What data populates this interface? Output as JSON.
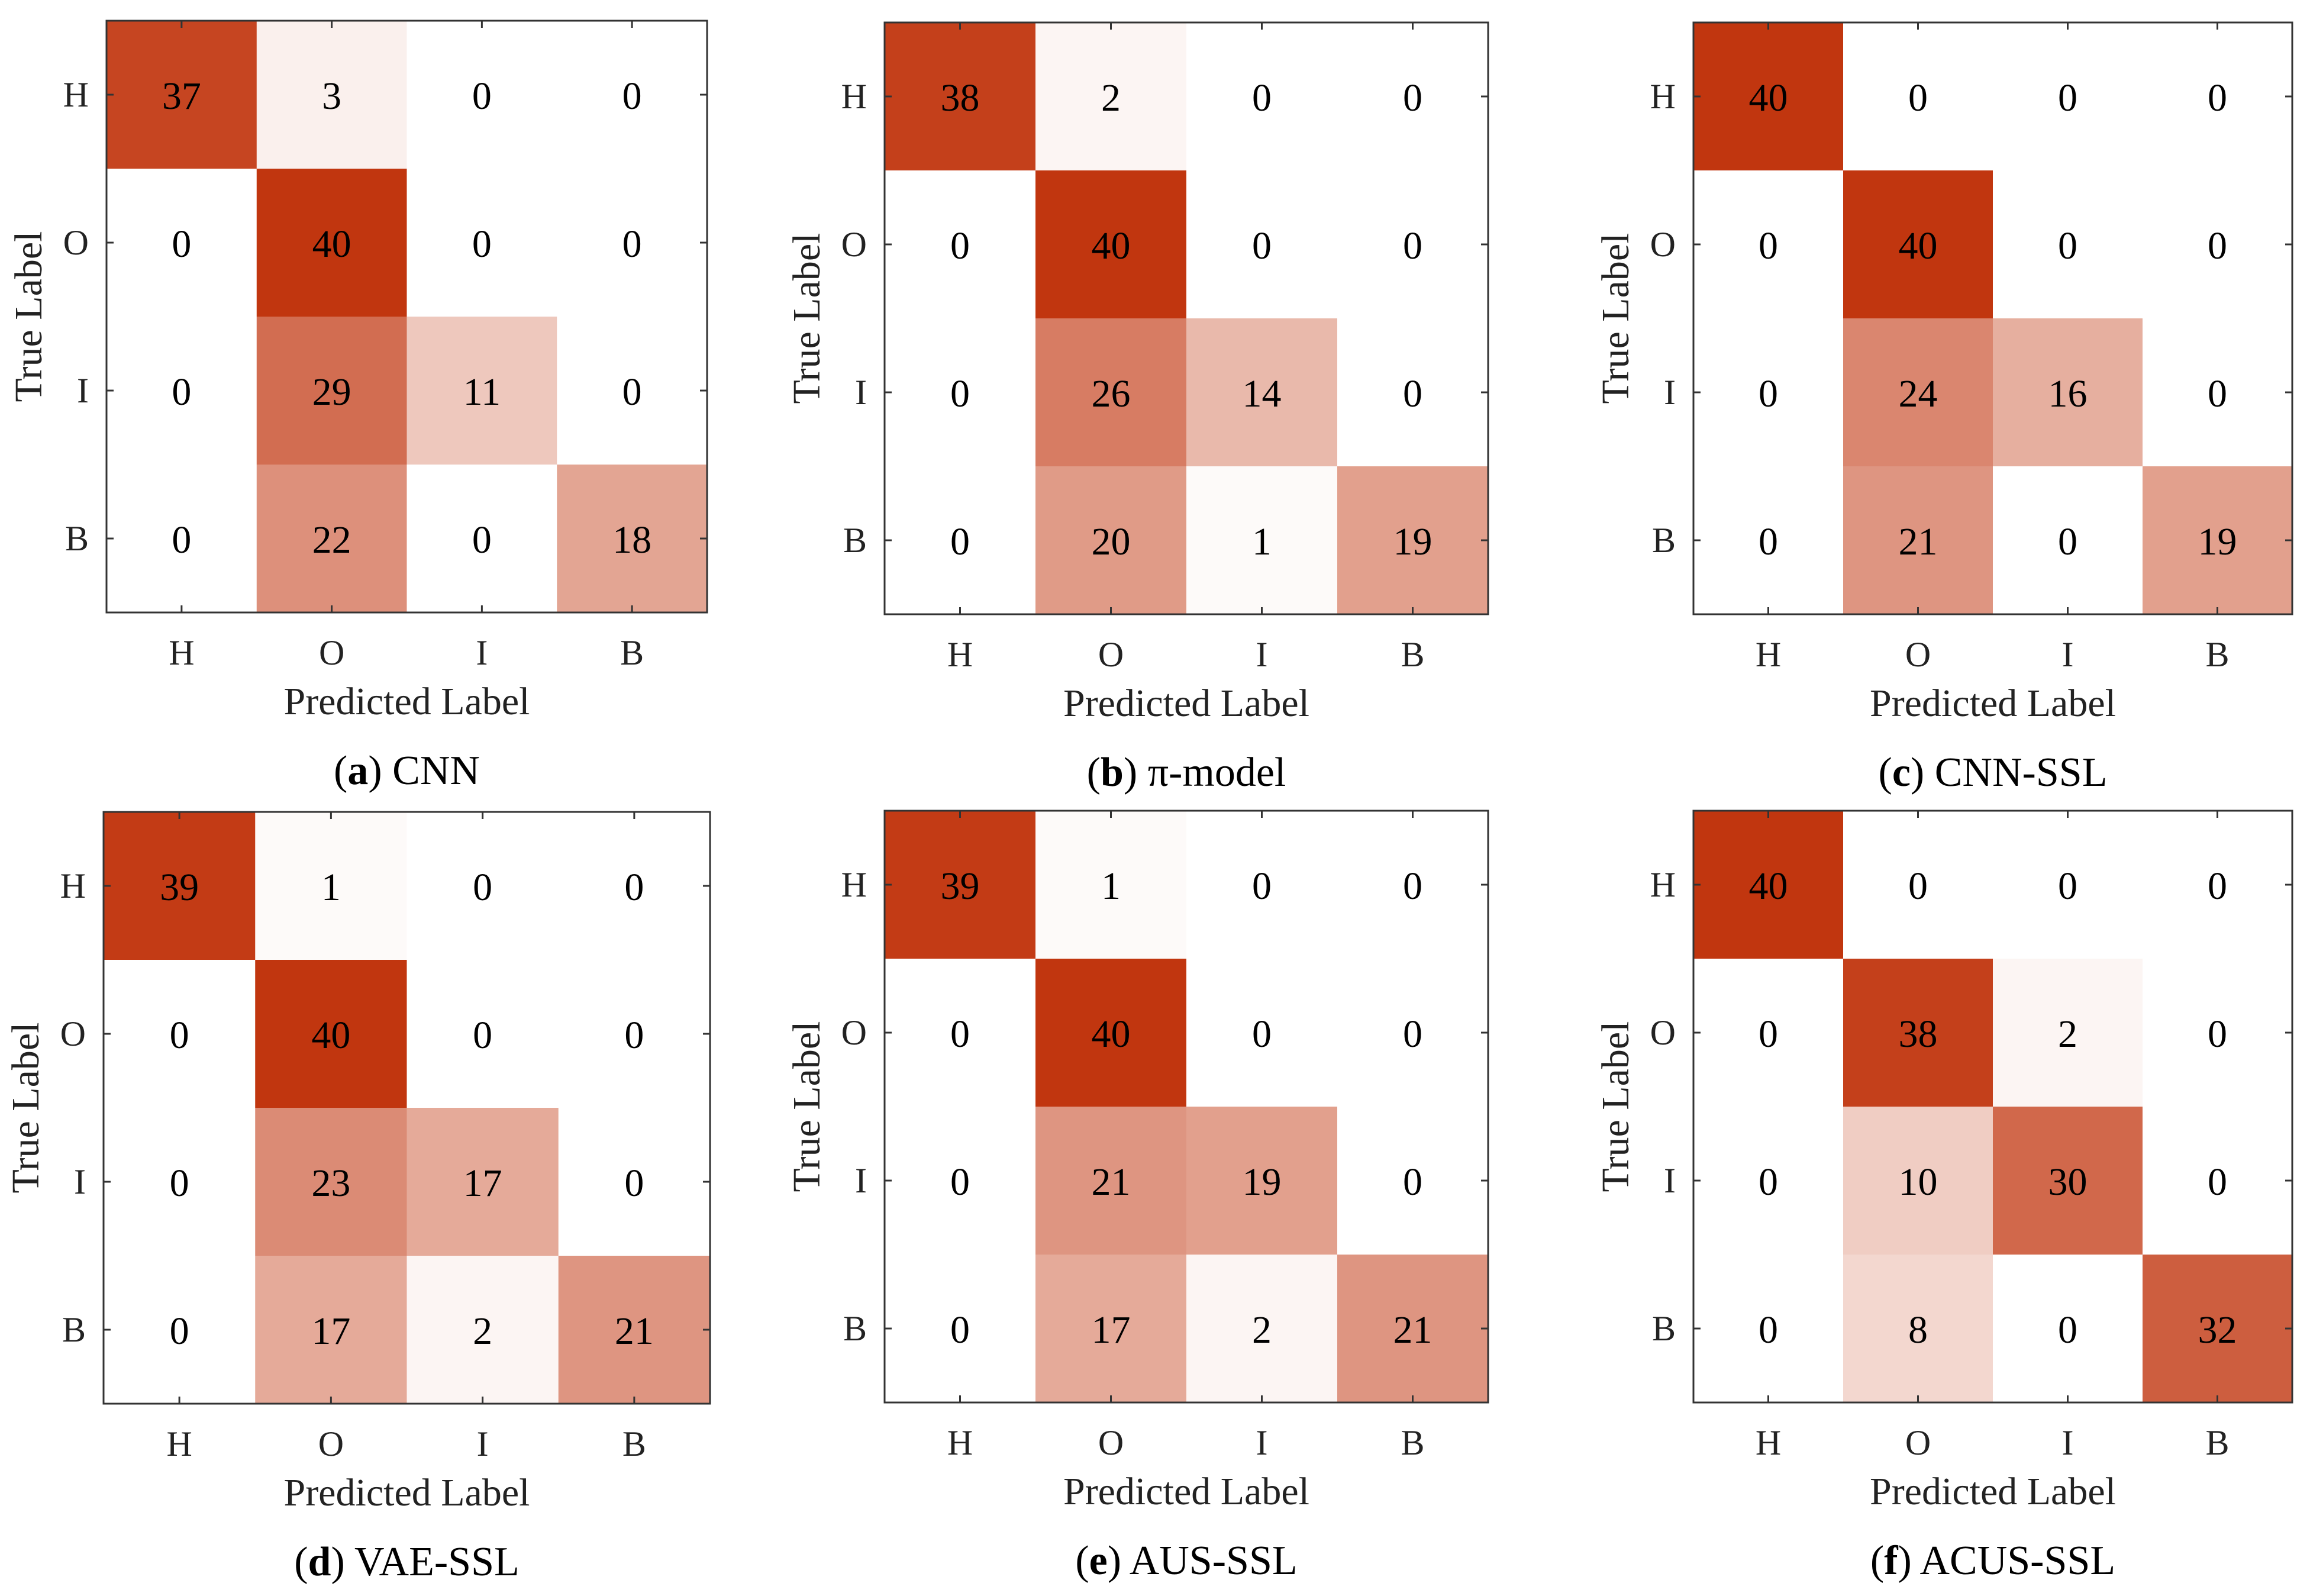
{
  "colors": {
    "max": "#c1360f",
    "min": "#ffffff",
    "axis": "#333333",
    "text": "#000000"
  },
  "chart_data": [
    {
      "type": "heatmap",
      "panel_letter": "a",
      "caption": "CNN",
      "xlabel": "Predicted Label",
      "ylabel": "True Label",
      "x_categories": [
        "H",
        "O",
        "I",
        "B"
      ],
      "y_categories": [
        "H",
        "O",
        "I",
        "B"
      ],
      "values": [
        [
          37,
          3,
          0,
          0
        ],
        [
          0,
          40,
          0,
          0
        ],
        [
          0,
          29,
          11,
          0
        ],
        [
          0,
          22,
          0,
          18
        ]
      ],
      "color_range": [
        0,
        40
      ]
    },
    {
      "type": "heatmap",
      "panel_letter": "b",
      "caption": "π-model",
      "xlabel": "Predicted Label",
      "ylabel": "True Label",
      "x_categories": [
        "H",
        "O",
        "I",
        "B"
      ],
      "y_categories": [
        "H",
        "O",
        "I",
        "B"
      ],
      "values": [
        [
          38,
          2,
          0,
          0
        ],
        [
          0,
          40,
          0,
          0
        ],
        [
          0,
          26,
          14,
          0
        ],
        [
          0,
          20,
          1,
          19
        ]
      ],
      "color_range": [
        0,
        40
      ]
    },
    {
      "type": "heatmap",
      "panel_letter": "c",
      "caption": "CNN-SSL",
      "xlabel": "Predicted Label",
      "ylabel": "True Label",
      "x_categories": [
        "H",
        "O",
        "I",
        "B"
      ],
      "y_categories": [
        "H",
        "O",
        "I",
        "B"
      ],
      "values": [
        [
          40,
          0,
          0,
          0
        ],
        [
          0,
          40,
          0,
          0
        ],
        [
          0,
          24,
          16,
          0
        ],
        [
          0,
          21,
          0,
          19
        ]
      ],
      "color_range": [
        0,
        40
      ]
    },
    {
      "type": "heatmap",
      "panel_letter": "d",
      "caption": "VAE-SSL",
      "xlabel": "Predicted Label",
      "ylabel": "True Label",
      "x_categories": [
        "H",
        "O",
        "I",
        "B"
      ],
      "y_categories": [
        "H",
        "O",
        "I",
        "B"
      ],
      "values": [
        [
          39,
          1,
          0,
          0
        ],
        [
          0,
          40,
          0,
          0
        ],
        [
          0,
          23,
          17,
          0
        ],
        [
          0,
          17,
          2,
          21
        ]
      ],
      "color_range": [
        0,
        40
      ]
    },
    {
      "type": "heatmap",
      "panel_letter": "e",
      "caption": "AUS-SSL",
      "xlabel": "Predicted Label",
      "ylabel": "True Label",
      "x_categories": [
        "H",
        "O",
        "I",
        "B"
      ],
      "y_categories": [
        "H",
        "O",
        "I",
        "B"
      ],
      "values": [
        [
          39,
          1,
          0,
          0
        ],
        [
          0,
          40,
          0,
          0
        ],
        [
          0,
          21,
          19,
          0
        ],
        [
          0,
          17,
          2,
          21
        ]
      ],
      "color_range": [
        0,
        40
      ]
    },
    {
      "type": "heatmap",
      "panel_letter": "f",
      "caption": "ACUS-SSL",
      "xlabel": "Predicted Label",
      "ylabel": "True Label",
      "x_categories": [
        "H",
        "O",
        "I",
        "B"
      ],
      "y_categories": [
        "H",
        "O",
        "I",
        "B"
      ],
      "values": [
        [
          40,
          0,
          0,
          0
        ],
        [
          0,
          38,
          2,
          0
        ],
        [
          0,
          10,
          30,
          0
        ],
        [
          0,
          8,
          0,
          32
        ]
      ],
      "color_range": [
        0,
        40
      ]
    }
  ]
}
